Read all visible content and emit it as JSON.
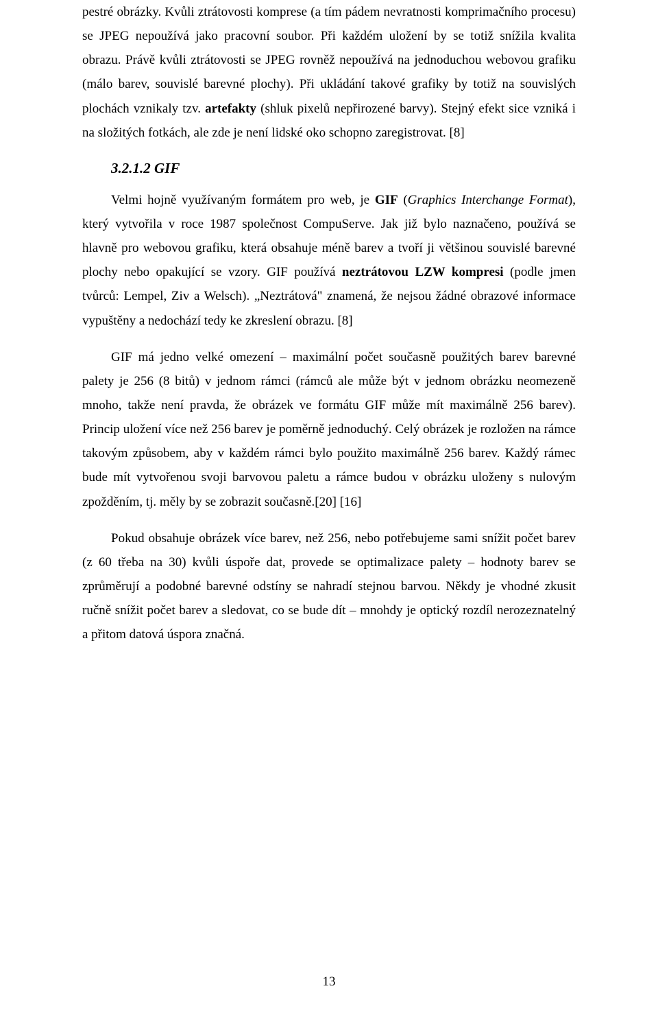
{
  "para1_pre": "pestré obrázky. Kvůli ztrátovosti komprese (a tím pádem nevratnosti komprimačního procesu) se JPEG nepoužívá jako pracovní soubor. Při každém uložení by se totiž snížila kvalita obrazu. Právě kvůli ztrátovosti se JPEG rovněž nepoužívá na jednoduchou webovou grafiku (málo barev, souvislé barevné plochy). Při ukládání takové grafiky by totiž na souvislých plochách vznikaly tzv. ",
  "para1_bold": "artefakty",
  "para1_post": " (shluk pixelů nepřirozené barvy). Stejný efekt sice vzniká i na složitých fotkách, ale zde je není lidské oko schopno zaregistrovat. [8]",
  "heading": "3.2.1.2 GIF",
  "para2_a": "Velmi hojně využívaným formátem pro web, je ",
  "para2_b_bold": "GIF",
  "para2_c": " (",
  "para2_d_italic": "Graphics Interchange Format",
  "para2_e": "), který vytvořila v roce 1987 společnost CompuServe. Jak již bylo naznačeno, používá se hlavně pro webovou grafiku, která obsahuje méně barev a tvoří ji většinou souvislé barevné plochy nebo opakující se vzory. GIF používá ",
  "para2_f_bold": "neztrátovou LZW kompresi",
  "para2_g": " (podle jmen tvůrců: Lempel, Ziv a Welsch). „Neztrátová\" znamená, že nejsou žádné obrazové informace vypuštěny a nedochází tedy ke zkreslení obrazu. [8]",
  "para3": "GIF má jedno velké omezení – maximální počet současně použitých barev barevné palety je 256 (8 bitů) v jednom rámci (rámců ale může být v jednom obrázku neomezeně mnoho, takže není pravda, že obrázek ve formátu GIF může mít maximálně 256 barev). Princip uložení více než 256 barev je poměrně jednoduchý. Celý obrázek je rozložen na rámce takovým způsobem, aby v každém rámci bylo použito maximálně 256 barev. Každý rámec bude mít vytvořenou svoji barvovou paletu a rámce budou v obrázku uloženy s nulovým zpožděním, tj. měly by se zobrazit současně.[20] [16]",
  "para4": "Pokud obsahuje obrázek více barev, než 256, nebo potřebujeme sami snížit počet barev (z 60 třeba na 30) kvůli úspoře dat, provede se optimalizace palety – hodnoty barev se zprůměrují a podobné barevné odstíny se nahradí stejnou barvou. Někdy je vhodné zkusit ručně snížit počet barev a sledovat, co se bude dít – mnohdy je optický rozdíl nerozeznatelný a přitom datová úspora značná.",
  "pageNumber": "13"
}
